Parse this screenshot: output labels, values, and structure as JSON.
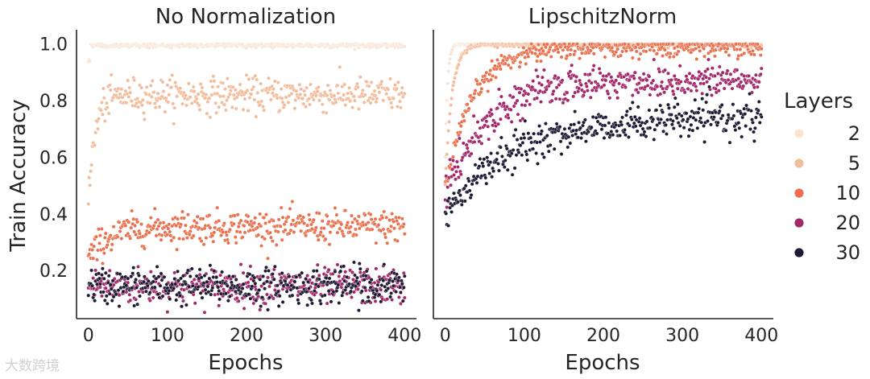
{
  "chart_data": {
    "type": "scatter",
    "legend": {
      "title": "Layers",
      "placement": "right",
      "entries": [
        {
          "label": "2",
          "color": "#f7e6d8"
        },
        {
          "label": "5",
          "color": "#f2bd9c"
        },
        {
          "label": "10",
          "color": "#e8724f"
        },
        {
          "label": "20",
          "color": "#a3286b"
        },
        {
          "label": "30",
          "color": "#1e1a33"
        }
      ]
    },
    "panels": [
      {
        "title": "No Normalization",
        "xlabel": "Epochs",
        "ylabel": "Train Accuracy",
        "xlim": [
          -15,
          415
        ],
        "ylim": [
          0.03,
          1.05
        ],
        "xticks": [
          "0",
          "100",
          "200",
          "300",
          "400"
        ],
        "yticks": [
          "0.2",
          "0.4",
          "0.6",
          "0.8",
          "1.0"
        ],
        "series": [
          {
            "layers": "2",
            "color": "#f7e6d8",
            "model": "flat",
            "start": 0.94,
            "plateau": 0.995,
            "rate": 0.5,
            "noise": 0.004
          },
          {
            "layers": "5",
            "color": "#f2bd9c",
            "model": "rise",
            "start": 0.43,
            "plateau": 0.82,
            "rate": 0.12,
            "noise": 0.03
          },
          {
            "layers": "10",
            "color": "#e8724f",
            "model": "rise",
            "start": 0.24,
            "plateau": 0.355,
            "rate": 0.04,
            "noise": 0.028
          },
          {
            "layers": "20",
            "color": "#a3286b",
            "model": "flat",
            "start": 0.14,
            "plateau": 0.145,
            "rate": 1,
            "noise": 0.032
          },
          {
            "layers": "30",
            "color": "#1e1a33",
            "model": "flat",
            "start": 0.14,
            "plateau": 0.145,
            "rate": 1,
            "noise": 0.032
          }
        ]
      },
      {
        "title": "LipschitzNorm",
        "xlabel": "Epochs",
        "ylabel": "",
        "xlim": [
          -15,
          415
        ],
        "ylim": [
          0.03,
          1.05
        ],
        "xticks": [
          "0",
          "100",
          "200",
          "300",
          "400"
        ],
        "yticks": [],
        "series": [
          {
            "layers": "2",
            "color": "#f7e6d8",
            "model": "rise",
            "start": 0.6,
            "plateau": 1.0,
            "rate": 0.35,
            "noise": 0.003
          },
          {
            "layers": "5",
            "color": "#f2bd9c",
            "model": "rise",
            "start": 0.5,
            "plateau": 0.998,
            "rate": 0.12,
            "noise": 0.004
          },
          {
            "layers": "10",
            "color": "#e8724f",
            "model": "rise",
            "start": 0.47,
            "plateau": 0.99,
            "rate": 0.03,
            "noise": 0.018
          },
          {
            "layers": "20",
            "color": "#a3286b",
            "model": "rise",
            "start": 0.46,
            "plateau": 0.87,
            "rate": 0.02,
            "noise": 0.03
          },
          {
            "layers": "30",
            "color": "#1e1a33",
            "model": "rise",
            "start": 0.4,
            "plateau": 0.74,
            "rate": 0.012,
            "noise": 0.03
          }
        ]
      }
    ]
  },
  "watermark": "大数跨境"
}
